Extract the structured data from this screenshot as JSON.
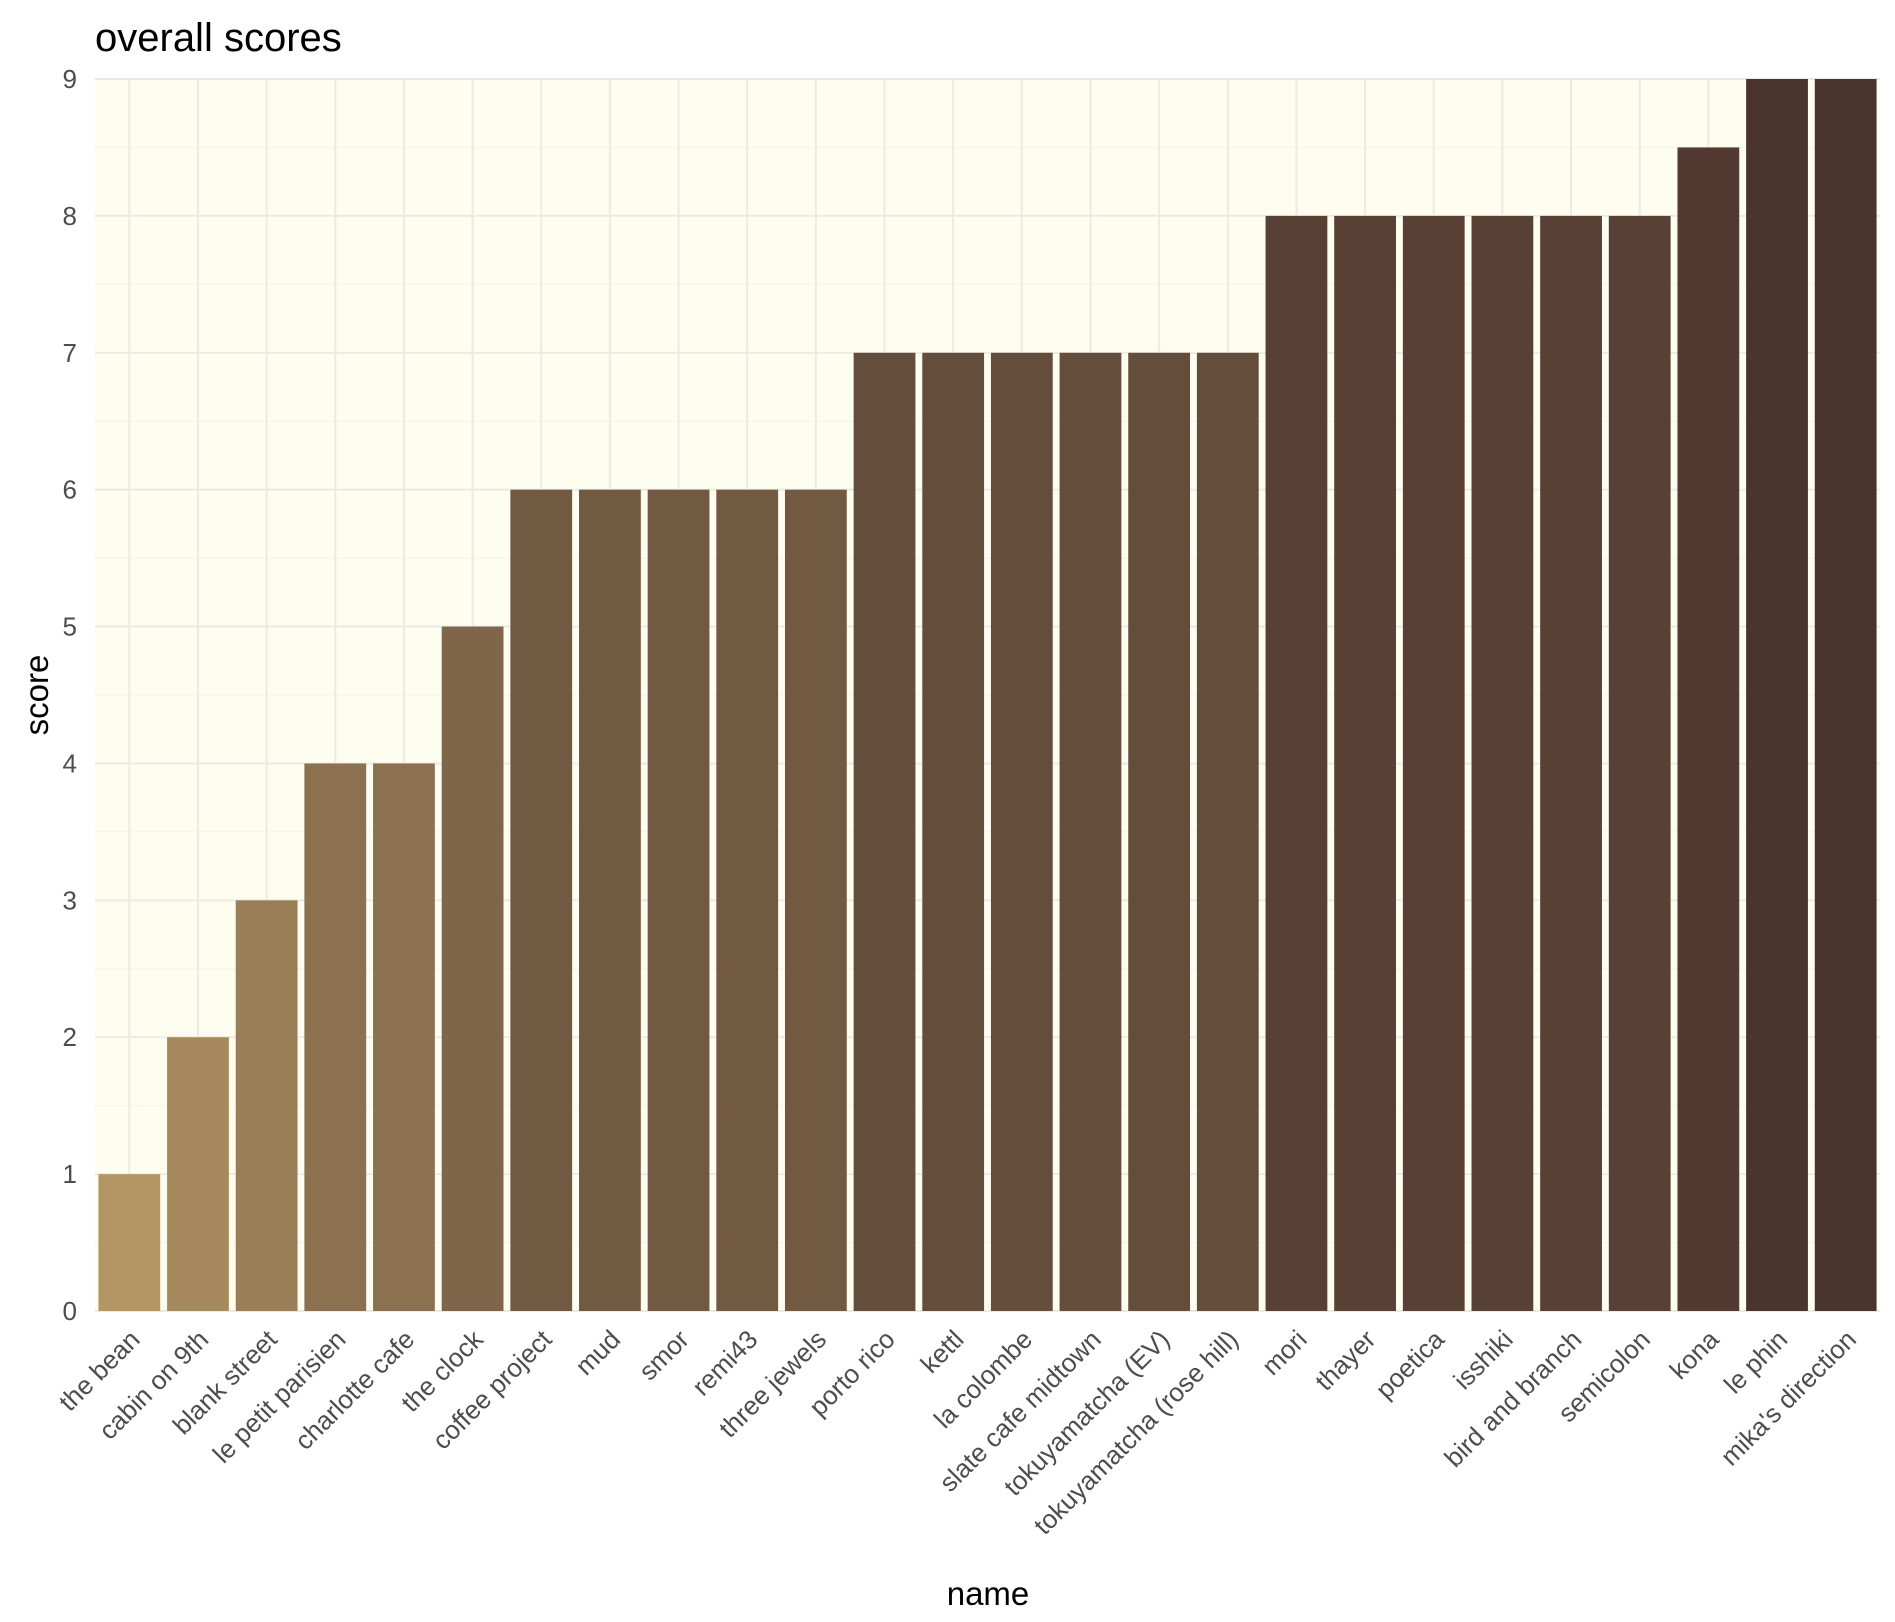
{
  "chart_data": {
    "type": "bar",
    "title": "overall scores",
    "xlabel": "name",
    "ylabel": "score",
    "ylim": [
      0,
      9
    ],
    "yticks": [
      "0",
      "1",
      "2",
      "3",
      "4",
      "5",
      "6",
      "7",
      "8",
      "9"
    ],
    "grid": true,
    "legend": "none",
    "categories": [
      "the bean",
      "cabin on 9th",
      "blank street",
      "le petit parisien",
      "charlotte cafe",
      "the clock",
      "coffee project",
      "mud",
      "smor",
      "remi43",
      "three jewels",
      "porto rico",
      "kettl",
      "la colombe",
      "slate cafe midtown",
      "tokuyamatcha (EV)",
      "tokuyamatcha (rose hill)",
      "mori",
      "thayer",
      "poetica",
      "isshiki",
      "bird and branch",
      "semicolon",
      "kona",
      "le phin",
      "mika's direction"
    ],
    "values": [
      1,
      2,
      3,
      4,
      4,
      5,
      6,
      6,
      6,
      6,
      6,
      7,
      7,
      7,
      7,
      7,
      7,
      8,
      8,
      8,
      8,
      8,
      8,
      8.5,
      9,
      9
    ],
    "colors": {
      "panel_background": "#fefef0",
      "grid_major": "#ebebe3",
      "grid_minor": "#f4f4e8",
      "bar_low": "#b39664",
      "bar_high": "#4b342e"
    }
  }
}
